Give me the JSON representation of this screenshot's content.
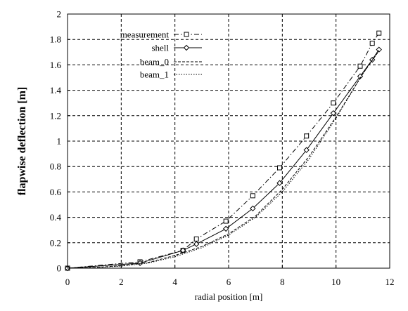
{
  "chart_data": {
    "type": "line",
    "title": "",
    "xlabel": "radial position [m]",
    "ylabel": "flapwise deflection [m]",
    "xlim": [
      0,
      12
    ],
    "ylim": [
      0,
      2
    ],
    "xticks": [
      "0",
      "2",
      "4",
      "6",
      "8",
      "10",
      "12"
    ],
    "yticks": [
      "0",
      "0.2",
      "0.4",
      "0.6",
      "0.8",
      "1",
      "1.2",
      "1.4",
      "1.6",
      "1.8",
      "2"
    ],
    "grid": true,
    "legend_position": "top-left",
    "series": [
      {
        "name": "measurement",
        "line_style": "dash-dot",
        "marker": "square",
        "color": "#000000",
        "x": [
          0,
          2.7,
          4.3,
          4.8,
          5.9,
          6.9,
          7.9,
          8.9,
          9.9,
          10.9,
          11.35,
          11.6
        ],
        "y": [
          0,
          0.05,
          0.14,
          0.23,
          0.37,
          0.57,
          0.79,
          1.04,
          1.3,
          1.59,
          1.77,
          1.85
        ]
      },
      {
        "name": "shell",
        "line_style": "solid",
        "marker": "diamond",
        "color": "#000000",
        "x": [
          0,
          2.7,
          4.3,
          4.8,
          5.9,
          6.9,
          7.9,
          8.9,
          9.9,
          10.9,
          11.35,
          11.6
        ],
        "y": [
          0,
          0.04,
          0.14,
          0.19,
          0.31,
          0.47,
          0.67,
          0.93,
          1.22,
          1.51,
          1.64,
          1.72
        ]
      },
      {
        "name": "beam_0",
        "line_style": "dashed",
        "marker": "none",
        "color": "#000000",
        "x": [
          0,
          1,
          2,
          3,
          4,
          5,
          6,
          7,
          8,
          9,
          10,
          11,
          11.6
        ],
        "y": [
          0,
          0.005,
          0.02,
          0.045,
          0.1,
          0.17,
          0.27,
          0.41,
          0.62,
          0.88,
          1.19,
          1.53,
          1.71
        ]
      },
      {
        "name": "beam_1",
        "line_style": "dotted",
        "marker": "none",
        "color": "#000000",
        "x": [
          0,
          1,
          2,
          3,
          4,
          5,
          6,
          7,
          8,
          9,
          10,
          11,
          11.6
        ],
        "y": [
          0,
          0.004,
          0.016,
          0.04,
          0.09,
          0.16,
          0.26,
          0.4,
          0.6,
          0.86,
          1.18,
          1.53,
          1.72
        ]
      }
    ]
  }
}
